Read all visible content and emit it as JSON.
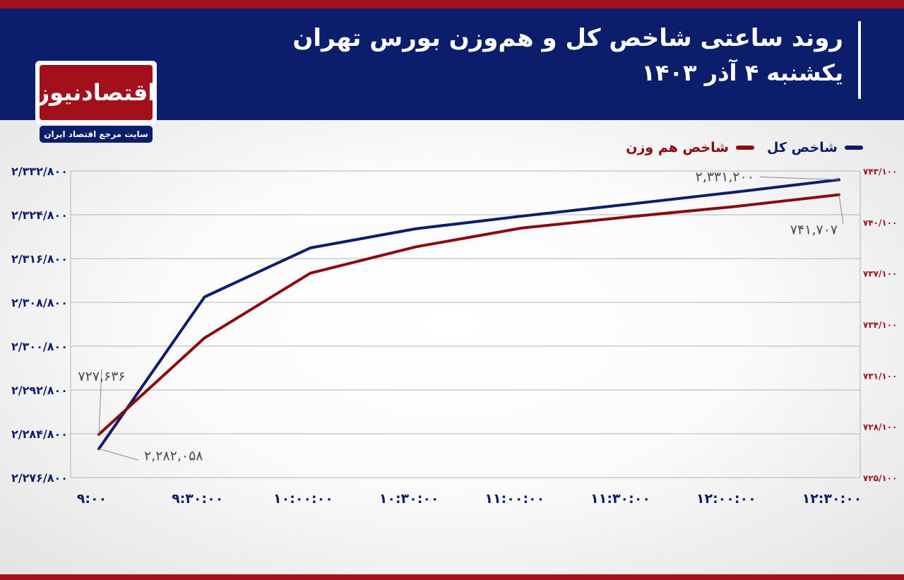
{
  "header": {
    "title_line1": "روند ساعتی شاخص کل و هم‌وزن بورس تهران",
    "title_line2": "یکشنبه ۴ آذر ۱۴۰۳"
  },
  "logo": {
    "name": "اقتصادنیوز",
    "tagline": "سایت مرجع اقتصاد ایران"
  },
  "colors": {
    "header_bg": "#0c1e6b",
    "accent_red": "#a3101c",
    "total_series": "#0c1e6b",
    "equal_series": "#8b0a10"
  },
  "chart_data": {
    "type": "line",
    "x": [
      "۹:۰۰",
      "۹:۳۰:۰۰",
      "۱۰:۰۰:۰۰",
      "۱۰:۳۰:۰۰",
      "۱۱:۰۰:۰۰",
      "۱۱:۳۰:۰۰",
      "۱۲:۰۰:۰۰",
      "۱۲:۳۰:۰۰"
    ],
    "series": [
      {
        "name": "شاخص کل",
        "axis": "left",
        "color": "#0c1e6b",
        "values": [
          2282058,
          2309800,
          2318750,
          2322250,
          2324550,
          2326700,
          2328900,
          2331200
        ]
      },
      {
        "name": "شاخص هم وزن",
        "axis": "right",
        "color": "#8b0a10",
        "values": [
          727636,
          733300,
          737100,
          738650,
          739750,
          740400,
          741000,
          741707
        ]
      }
    ],
    "y_left": {
      "ylim": [
        2276800,
        2332800
      ],
      "ticks": [
        2276800,
        2284800,
        2292800,
        2300800,
        2308800,
        2316800,
        2324800,
        2332800
      ],
      "tick_labels": [
        "۲/۲۷۶/۸۰۰",
        "۲/۲۸۴/۸۰۰",
        "۲/۲۹۲/۸۰۰",
        "۲/۳۰۰/۸۰۰",
        "۲/۳۰۸/۸۰۰",
        "۲/۳۱۶/۸۰۰",
        "۲/۳۲۴/۸۰۰",
        "۲/۳۳۲/۸۰۰"
      ]
    },
    "y_right": {
      "ylim": [
        725100,
        743100
      ],
      "ticks": [
        725100,
        728100,
        731100,
        734100,
        737100,
        740100,
        743100
      ],
      "tick_labels": [
        "۷۲۵/۱۰۰",
        "۷۲۸/۱۰۰",
        "۷۳۱/۱۰۰",
        "۷۳۴/۱۰۰",
        "۷۳۷/۱۰۰",
        "۷۴۰/۱۰۰",
        "۷۴۳/۱۰۰"
      ]
    },
    "annotations": [
      {
        "series": 0,
        "point": 0,
        "text": "۲,۲۸۲,۰۵۸"
      },
      {
        "series": 0,
        "point": 7,
        "text": "۲,۳۳۱,۲۰۰"
      },
      {
        "series": 1,
        "point": 0,
        "text": "۷۲۷,۶۳۶"
      },
      {
        "series": 1,
        "point": 7,
        "text": "۷۴۱,۷۰۷"
      }
    ],
    "grid": true,
    "legend": "top-right"
  }
}
